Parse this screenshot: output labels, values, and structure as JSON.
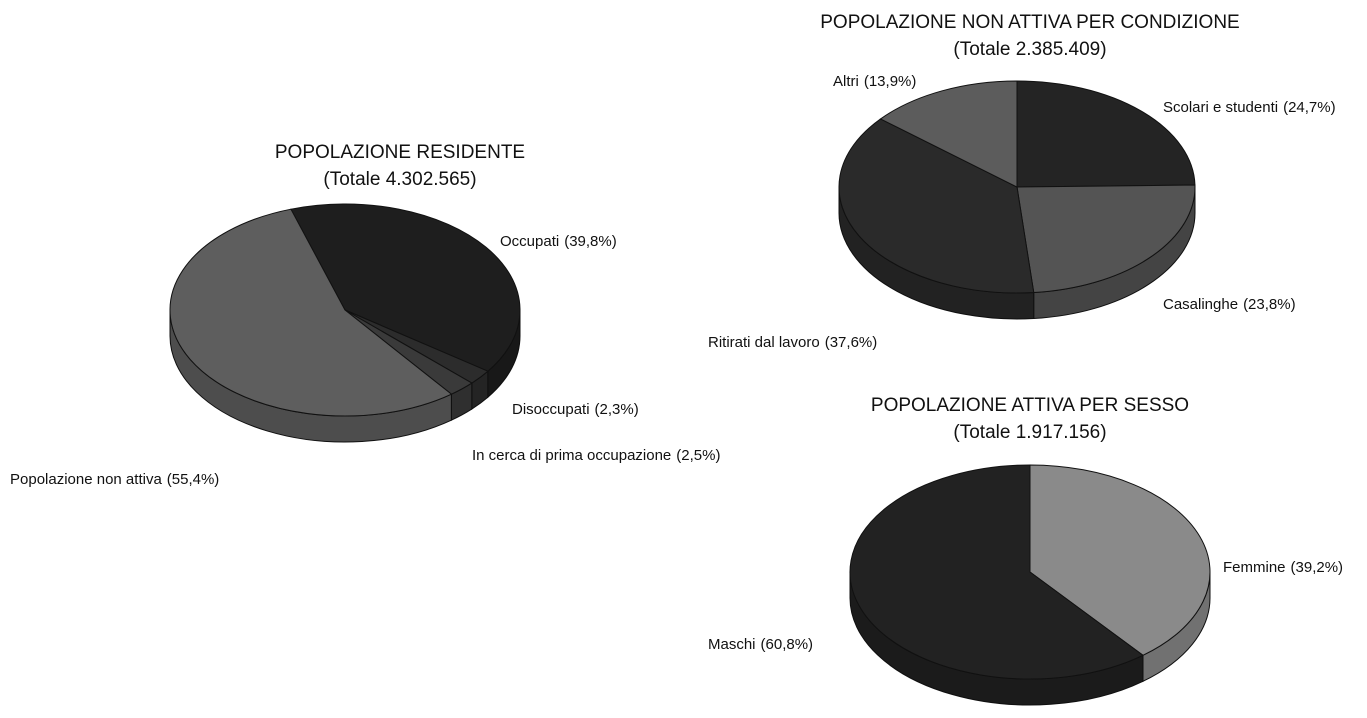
{
  "chart_data": [
    {
      "type": "pie",
      "title": "POPOLAZIONE RESIDENTE",
      "subtitle": "(Totale 4.302.565)",
      "categories": [
        "Occupati",
        "Disoccupati",
        "In cerca di prima occupazione",
        "Popolazione non attiva"
      ],
      "values": [
        39.8,
        2.3,
        2.5,
        55.4
      ],
      "value_labels": [
        "(39,8%)",
        "(2,3%)",
        "(2,5%)",
        "(55,4%)"
      ],
      "colors": [
        "#1e1e1e",
        "#2c2c2c",
        "#3a3a3a",
        "#5e5e5e"
      ]
    },
    {
      "type": "pie",
      "title": "POPOLAZIONE NON ATTIVA PER CONDIZIONE",
      "subtitle": "(Totale 2.385.409)",
      "categories": [
        "Scolari e studenti",
        "Casalinghe",
        "Ritirati dal lavoro",
        "Altri"
      ],
      "values": [
        24.7,
        23.8,
        37.6,
        13.9
      ],
      "value_labels": [
        "(24,7%)",
        "(23,8%)",
        "(37,6%)",
        "(13,9%)"
      ],
      "colors": [
        "#242424",
        "#545454",
        "#2a2a2a",
        "#5c5c5c"
      ]
    },
    {
      "type": "pie",
      "title": "POPOLAZIONE ATTIVA PER SESSO",
      "subtitle": "(Totale 1.917.156)",
      "categories": [
        "Femmine",
        "Maschi"
      ],
      "values": [
        39.2,
        60.8
      ],
      "value_labels": [
        "(39,2%)",
        "(60,8%)"
      ],
      "colors": [
        "#8a8a8a",
        "#222222"
      ]
    }
  ]
}
